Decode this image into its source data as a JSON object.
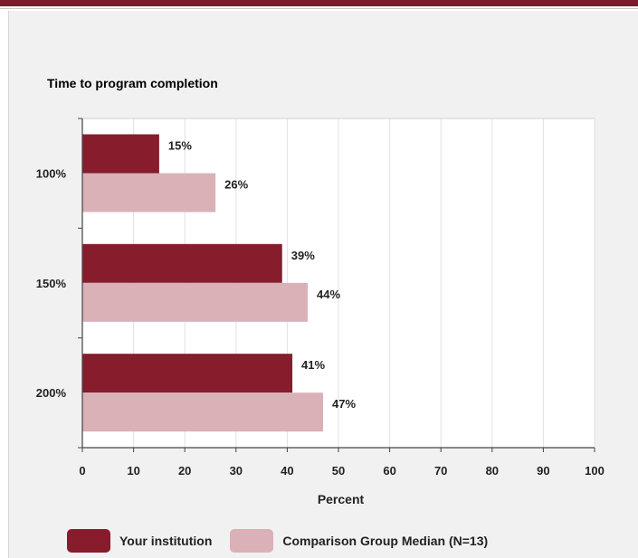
{
  "colors": {
    "accent_bar": "#7e1a2c",
    "series_institution": "#861c2c",
    "series_comparison": "#d9b1b7",
    "plot_background": "#ffffff",
    "panel_background": "#f1f1f1",
    "gridline": "#e2e2e2"
  },
  "chart_data": {
    "type": "bar",
    "orientation": "horizontal",
    "title": "Time to program completion",
    "xlabel": "Percent",
    "ylabel": "",
    "categories": [
      "100%",
      "150%",
      "200%"
    ],
    "series": [
      {
        "name": "Your institution",
        "values": [
          15,
          39,
          41
        ]
      },
      {
        "name": "Comparison Group Median (N=13)",
        "values": [
          26,
          44,
          47
        ]
      }
    ],
    "data_labels": [
      [
        "15%",
        "39%",
        "41%"
      ],
      [
        "26%",
        "44%",
        "47%"
      ]
    ],
    "xlim": [
      0,
      100
    ],
    "x_ticks": [
      0,
      10,
      20,
      30,
      40,
      50,
      60,
      70,
      80,
      90,
      100
    ],
    "grid": "vertical",
    "legend_position": "bottom"
  }
}
